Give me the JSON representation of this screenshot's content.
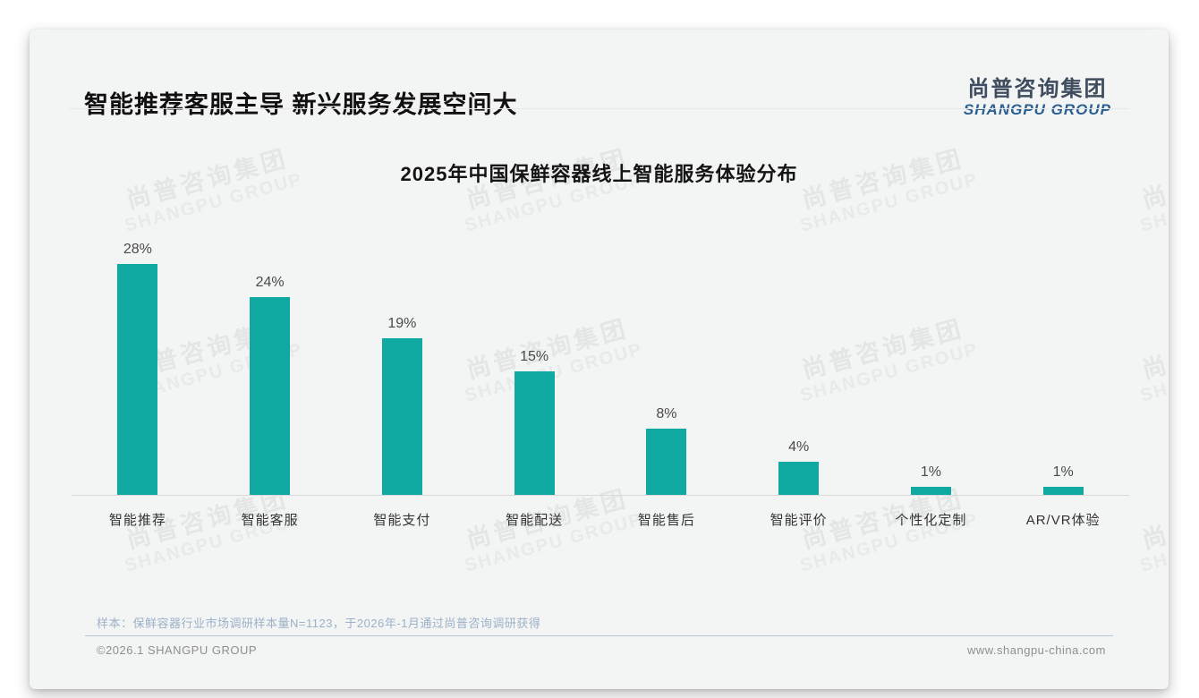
{
  "page": {
    "header": {
      "title": "智能推荐客服主导 新兴服务发展空间大"
    },
    "logo": {
      "cn": "尚普咨询集团",
      "en": "SHANGPU GROUP",
      "cn_color": "#3f4d5e",
      "en_color": "#2a5f92"
    },
    "watermark": {
      "line1": "尚普咨询集团",
      "line2": "SHANGPU GROUP"
    },
    "note": "样本：保鲜容器行业市场调研样本量N=1123，于2026年-1月通过尚普咨询调研获得",
    "footer": {
      "left": "©2026.1 SHANGPU GROUP",
      "right": "www.shangpu-china.com"
    }
  },
  "chart_data": {
    "type": "bar",
    "title": "2025年中国保鲜容器线上智能服务体验分布",
    "categories": [
      "智能推荐",
      "智能客服",
      "智能支付",
      "智能配送",
      "智能售后",
      "智能评价",
      "个性化定制",
      "AR/VR体验"
    ],
    "values": [
      28,
      24,
      19,
      15,
      8,
      4,
      1,
      1
    ],
    "unit": "%",
    "value_labels": [
      "28%",
      "24%",
      "19%",
      "15%",
      "8%",
      "4%",
      "1%",
      "1%"
    ],
    "bar_color": "#10a9a2",
    "axis_color": "#d9d9d9",
    "xlabel": "",
    "ylabel": "",
    "ylim": [
      0,
      30
    ],
    "grid": false,
    "legend": null
  }
}
